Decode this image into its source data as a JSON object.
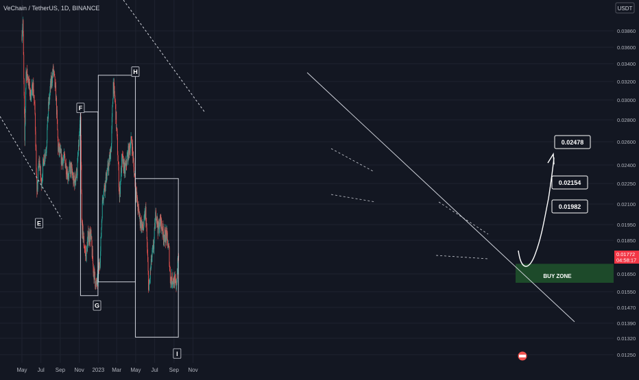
{
  "header": {
    "symbol_title": "VeChain / TetherUS, 1D, BINANCE"
  },
  "currency_badge": "USDT",
  "price_tag": {
    "price": "0.01772",
    "countdown": "04:58:17"
  },
  "colors": {
    "up": "#26a69a",
    "down": "#ef5350",
    "buy_zone": "#1e4d2b",
    "background": "#131722",
    "price_tag": "#f23645"
  },
  "chart_data": {
    "type": "candlestick",
    "title": "",
    "xlabel": "",
    "ylabel": "",
    "x_ticks": [
      "May",
      "Jul",
      "Sep",
      "Nov",
      "2023",
      "Mar",
      "May",
      "Jul",
      "Sep",
      "Nov"
    ],
    "y_ticks": [
      "0.03860",
      "0.03600",
      "0.03400",
      "0.03200",
      "0.03000",
      "0.02800",
      "0.02600",
      "0.02400",
      "0.02250",
      "0.02100",
      "0.01950",
      "0.01850",
      "0.01650",
      "0.01550",
      "0.01470",
      "0.01390",
      "0.01320",
      "0.01250"
    ],
    "ylim": [
      0.0122,
      0.0405
    ],
    "x_range": [
      "2022-05-01",
      "2023-11-20"
    ],
    "grid": true,
    "price_path": [
      [
        "2022-05-01",
        0.038
      ],
      [
        "2022-05-04",
        0.0402
      ],
      [
        "2022-05-07",
        0.032
      ],
      [
        "2022-05-10",
        0.026
      ],
      [
        "2022-05-14",
        0.033
      ],
      [
        "2022-05-20",
        0.0325
      ],
      [
        "2022-05-28",
        0.0305
      ],
      [
        "2022-06-06",
        0.0315
      ],
      [
        "2022-06-12",
        0.0285
      ],
      [
        "2022-06-18",
        0.0215
      ],
      [
        "2022-06-25",
        0.0245
      ],
      [
        "2022-07-02",
        0.0225
      ],
      [
        "2022-07-10",
        0.0245
      ],
      [
        "2022-07-18",
        0.0255
      ],
      [
        "2022-07-25",
        0.0292
      ],
      [
        "2022-08-01",
        0.0315
      ],
      [
        "2022-08-10",
        0.0333
      ],
      [
        "2022-08-18",
        0.0305
      ],
      [
        "2022-08-25",
        0.0255
      ],
      [
        "2022-09-05",
        0.0245
      ],
      [
        "2022-09-15",
        0.0245
      ],
      [
        "2022-09-25",
        0.0232
      ],
      [
        "2022-10-05",
        0.0238
      ],
      [
        "2022-10-15",
        0.0225
      ],
      [
        "2022-10-25",
        0.0235
      ],
      [
        "2022-11-05",
        0.028
      ],
      [
        "2022-11-09",
        0.0195
      ],
      [
        "2022-11-15",
        0.0185
      ],
      [
        "2022-11-22",
        0.0175
      ],
      [
        "2022-11-30",
        0.0188
      ],
      [
        "2022-12-08",
        0.0188
      ],
      [
        "2022-12-16",
        0.0168
      ],
      [
        "2022-12-25",
        0.0158
      ],
      [
        "2022-12-31",
        0.0162
      ],
      [
        "2023-01-08",
        0.0178
      ],
      [
        "2023-01-15",
        0.0215
      ],
      [
        "2023-01-25",
        0.0228
      ],
      [
        "2023-02-05",
        0.0242
      ],
      [
        "2023-02-12",
        0.0258
      ],
      [
        "2023-02-18",
        0.0318
      ],
      [
        "2023-02-24",
        0.0298
      ],
      [
        "2023-03-02",
        0.0265
      ],
      [
        "2023-03-10",
        0.0215
      ],
      [
        "2023-03-18",
        0.0245
      ],
      [
        "2023-03-28",
        0.0235
      ],
      [
        "2023-04-05",
        0.0248
      ],
      [
        "2023-04-18",
        0.0262
      ],
      [
        "2023-04-25",
        0.0238
      ],
      [
        "2023-05-05",
        0.0212
      ],
      [
        "2023-05-15",
        0.0198
      ],
      [
        "2023-05-25",
        0.0192
      ],
      [
        "2023-06-02",
        0.0205
      ],
      [
        "2023-06-08",
        0.0175
      ],
      [
        "2023-06-12",
        0.0155
      ],
      [
        "2023-06-20",
        0.0172
      ],
      [
        "2023-06-28",
        0.0182
      ],
      [
        "2023-07-05",
        0.0205
      ],
      [
        "2023-07-12",
        0.0192
      ],
      [
        "2023-07-20",
        0.0198
      ],
      [
        "2023-07-30",
        0.0188
      ],
      [
        "2023-08-08",
        0.0188
      ],
      [
        "2023-08-16",
        0.0178
      ],
      [
        "2023-08-20",
        0.0162
      ],
      [
        "2023-08-30",
        0.0162
      ],
      [
        "2023-09-08",
        0.0158
      ],
      [
        "2023-09-12",
        0.0168
      ],
      [
        "2023-09-16",
        0.0177
      ]
    ],
    "wave_labels": [
      {
        "label": "E",
        "date": "2022-06-25",
        "price": 0.0196
      },
      {
        "label": "F",
        "date": "2022-11-05",
        "price": 0.0292
      },
      {
        "label": "G",
        "date": "2022-12-28",
        "price": 0.0148
      },
      {
        "label": "H",
        "date": "2023-04-30",
        "price": 0.0331
      },
      {
        "label": "I",
        "date": "2023-09-11",
        "price": 0.01255
      }
    ],
    "targets": [
      "0.01982",
      "0.02154",
      "0.02478"
    ],
    "buy_zone": {
      "label": "BUY ZONE",
      "price_top": 0.0171,
      "price_bottom": 0.016
    },
    "boxes": [
      {
        "from": "2022-11-05",
        "to": "2022-12-31",
        "price_high": 0.0288,
        "price_low": 0.0153
      },
      {
        "from": "2023-01-01",
        "to": "2023-04-30",
        "price_high": 0.0327,
        "price_low": 0.01605
      },
      {
        "from": "2023-04-30",
        "to": "2023-09-15",
        "price_high": 0.0229,
        "price_low": 0.01325
      }
    ]
  }
}
